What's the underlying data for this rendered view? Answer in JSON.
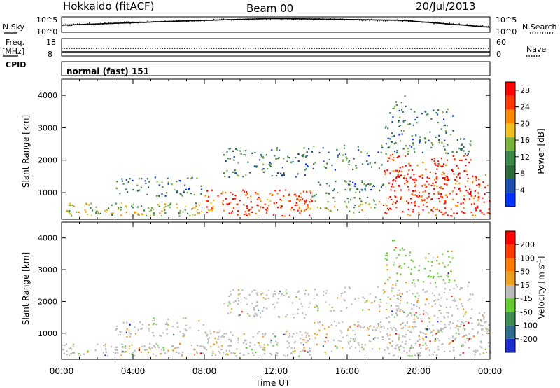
{
  "header": {
    "station": "Hokkaido (fitACF)",
    "beam": "Beam 00",
    "date": "20/Jul/2013"
  },
  "panels": {
    "nsky_label": "N.Sky",
    "nsky_ticks": [
      "10^5",
      "10^0"
    ],
    "nsearch_label": "N.Search",
    "nsearch_ticks": [
      "10^5",
      "10^0"
    ],
    "freq_label": "Freq.",
    "freq_unit": "[MHz]",
    "freq_ticks": [
      "18",
      "8"
    ],
    "nave_label": "Nave",
    "nave_ticks": [
      "60",
      "0"
    ],
    "cpid_label": "CPID",
    "cpid_mode": "normal (fast) 151"
  },
  "chart_data": [
    {
      "type": "heatmap",
      "panel": "power",
      "ylabel": "Slant Range [km]",
      "xlabel": "",
      "y_ticks": [
        1000,
        2000,
        3000,
        4000
      ],
      "x_ticks": [
        "00:00",
        "04:00",
        "08:00",
        "12:00",
        "16:00",
        "20:00",
        "00:00"
      ],
      "xlim_hours": [
        0,
        24
      ],
      "ylim_km": [
        180,
        4500
      ],
      "colorbar": {
        "label": "Power [dB]",
        "ticks": [
          "4",
          "8",
          "12",
          "16",
          "20",
          "24",
          "28"
        ],
        "range": [
          0,
          30
        ],
        "colors": [
          "#0033ff",
          "#1d4fb0",
          "#2e6a3c",
          "#3a8a4a",
          "#7ab43c",
          "#f0c020",
          "#ff8c00",
          "#ff3a00",
          "#ff0000"
        ]
      }
    },
    {
      "type": "heatmap",
      "panel": "velocity",
      "ylabel": "Slant Range [km]",
      "xlabel": "Time UT",
      "y_ticks": [
        1000,
        2000,
        3000,
        4000
      ],
      "x_ticks": [
        "00:00",
        "04:00",
        "08:00",
        "12:00",
        "16:00",
        "20:00",
        "00:00"
      ],
      "xlim_hours": [
        0,
        24
      ],
      "ylim_km": [
        180,
        4500
      ],
      "colorbar": {
        "label": "Velocity [m s",
        "label_sup": "-1",
        "label_end": "]",
        "ticks": [
          "200",
          "100",
          "50",
          "15",
          "-15",
          "-50",
          "-100",
          "-200"
        ],
        "colors": [
          "#1a2bd0",
          "#2c6e8c",
          "#3e8e50",
          "#66cc33",
          "#bbbbbb",
          "#f0a020",
          "#ff7a00",
          "#ff3a00",
          "#ff0000"
        ]
      }
    }
  ]
}
